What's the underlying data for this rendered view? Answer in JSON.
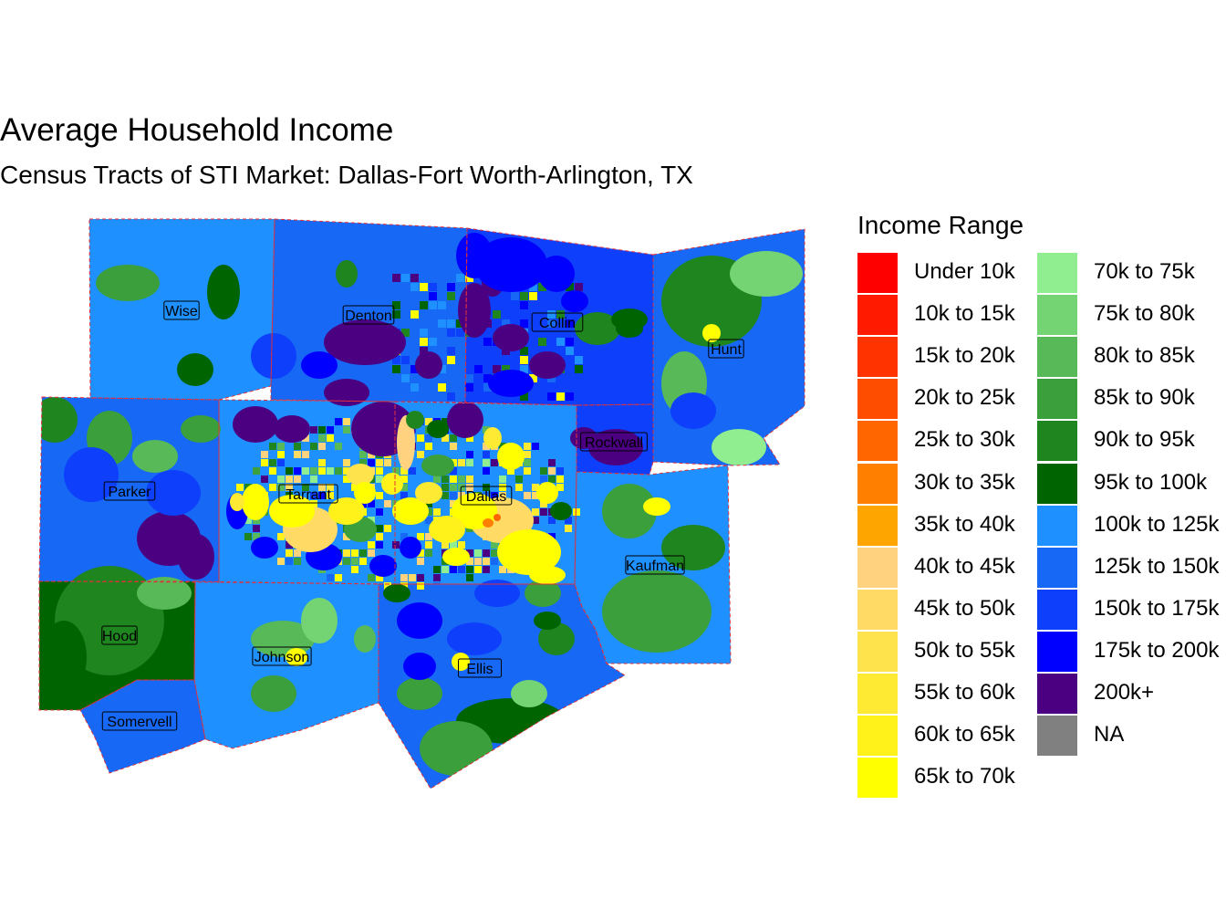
{
  "title": "Average Household Income",
  "subtitle": "Census Tracts of STI Market: Dallas-Fort Worth-Arlington, TX",
  "legend": {
    "title": "Income Range",
    "items": [
      {
        "label": "Under 10k",
        "color": "#ff0000"
      },
      {
        "label": "10k to 15k",
        "color": "#ff1a00"
      },
      {
        "label": "15k to 20k",
        "color": "#ff3300"
      },
      {
        "label": "20k to 25k",
        "color": "#ff4d00"
      },
      {
        "label": "25k to 30k",
        "color": "#ff6600"
      },
      {
        "label": "30k to 35k",
        "color": "#ff8000"
      },
      {
        "label": "35k to 40k",
        "color": "#ffa500"
      },
      {
        "label": "40k to 45k",
        "color": "#ffd27f"
      },
      {
        "label": "45k to 50k",
        "color": "#ffdb66"
      },
      {
        "label": "50k to 55k",
        "color": "#ffe34d"
      },
      {
        "label": "55k to 60k",
        "color": "#ffea33"
      },
      {
        "label": "60k to 65k",
        "color": "#fff21a"
      },
      {
        "label": "65k to 70k",
        "color": "#ffff00"
      },
      {
        "label": "70k to 75k",
        "color": "#90ee90"
      },
      {
        "label": "75k to 80k",
        "color": "#74d474"
      },
      {
        "label": "80k to 85k",
        "color": "#57b957"
      },
      {
        "label": "85k to 90k",
        "color": "#3b9f3b"
      },
      {
        "label": "90k to 95k",
        "color": "#1f851f"
      },
      {
        "label": "95k to 100k",
        "color": "#006400"
      },
      {
        "label": "100k to 125k",
        "color": "#1e90ff"
      },
      {
        "label": "125k to 150k",
        "color": "#1668f5"
      },
      {
        "label": "150k to 175k",
        "color": "#0e3ffa"
      },
      {
        "label": "175k to 200k",
        "color": "#0000ff"
      },
      {
        "label": "200k+",
        "color": "#4b0082"
      },
      {
        "label": "NA",
        "color": "#808080"
      }
    ]
  },
  "counties": [
    {
      "name": "Wise"
    },
    {
      "name": "Denton"
    },
    {
      "name": "Collin"
    },
    {
      "name": "Hunt"
    },
    {
      "name": "Rockwall"
    },
    {
      "name": "Parker"
    },
    {
      "name": "Tarrant"
    },
    {
      "name": "Dallas"
    },
    {
      "name": "Kaufman"
    },
    {
      "name": "Hood"
    },
    {
      "name": "Johnson"
    },
    {
      "name": "Ellis"
    },
    {
      "name": "Somervell"
    }
  ],
  "colors": {
    "county_border": "#e0303a",
    "background": "#ffffff"
  }
}
